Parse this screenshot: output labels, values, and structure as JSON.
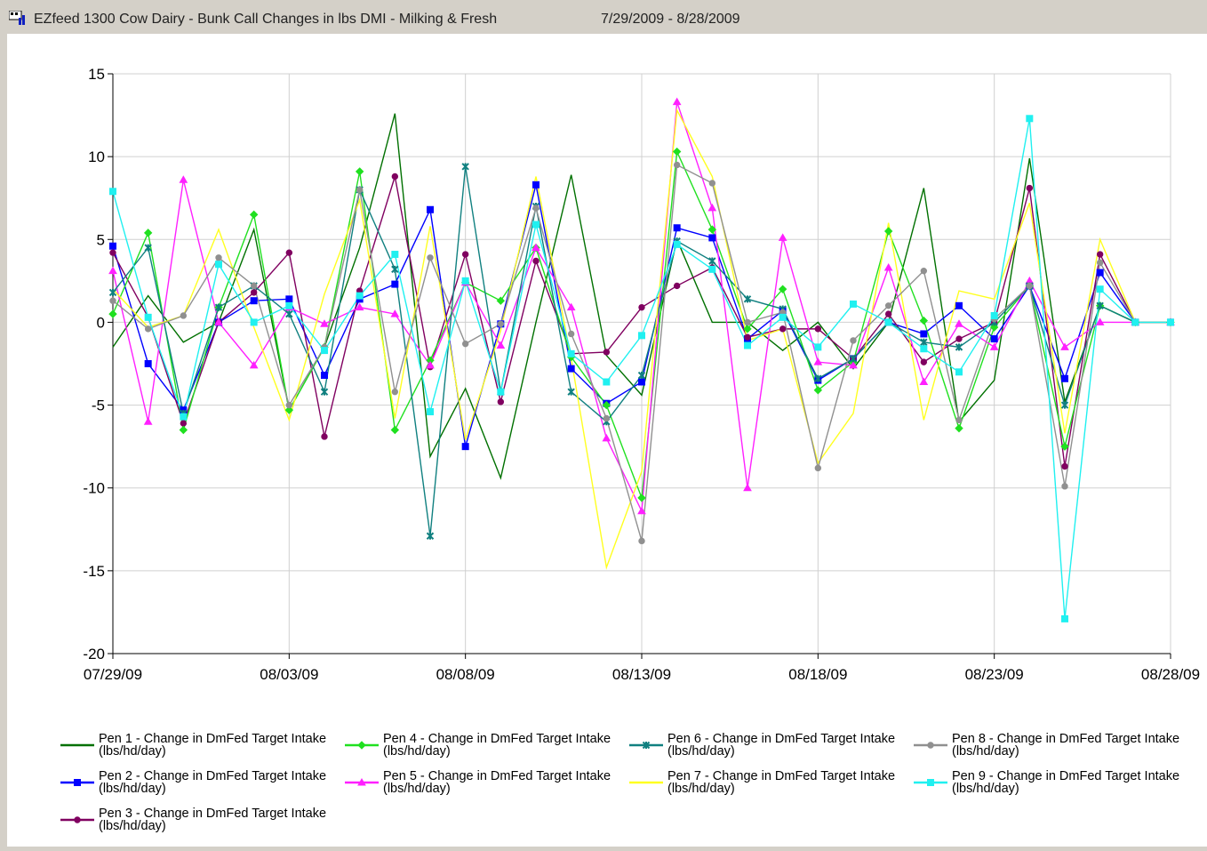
{
  "window": {
    "title": "EZfeed 1300 Cow Dairy - Bunk Call Changes in lbs DMI - Milking & Fresh",
    "date_range": "7/29/2009 - 8/28/2009"
  },
  "chart_data": {
    "type": "line",
    "x": [
      "07/29/09",
      "07/30/09",
      "07/31/09",
      "08/01/09",
      "08/02/09",
      "08/03/09",
      "08/04/09",
      "08/05/09",
      "08/06/09",
      "08/07/09",
      "08/08/09",
      "08/09/09",
      "08/10/09",
      "08/11/09",
      "08/12/09",
      "08/13/09",
      "08/14/09",
      "08/15/09",
      "08/16/09",
      "08/17/09",
      "08/18/09",
      "08/19/09",
      "08/20/09",
      "08/21/09",
      "08/22/09",
      "08/23/09",
      "08/24/09",
      "08/25/09",
      "08/26/09",
      "08/27/09",
      "08/28/09"
    ],
    "xticks": [
      "07/29/09",
      "08/03/09",
      "08/08/09",
      "08/13/09",
      "08/18/09",
      "08/23/09",
      "08/28/09"
    ],
    "ylim": [
      -20,
      15
    ],
    "yticks": [
      -20,
      -15,
      -10,
      -5,
      0,
      5,
      10,
      15
    ],
    "grid": true,
    "series": [
      {
        "name": "Pen 1 - Change in DmFed Target Intake (lbs/hd/day)",
        "color": "#007000",
        "marker": "none",
        "values": [
          -1.5,
          1.6,
          -1.2,
          0,
          5.6,
          -5.3,
          -1.5,
          4.5,
          12.6,
          -8.1,
          -4,
          -9.4,
          0,
          8.9,
          -2,
          -4.4,
          5,
          0,
          0,
          -1.7,
          0,
          -2.8,
          0,
          8.1,
          -6,
          -3.5,
          9.9,
          -4.8,
          1,
          0,
          0
        ]
      },
      {
        "name": "Pen 2 - Change in DmFed Target Intake (lbs/hd/day)",
        "color": "#0000ff",
        "marker": "square",
        "values": [
          4.6,
          -2.5,
          -5.3,
          0,
          1.3,
          1.4,
          -3.2,
          1.4,
          2.3,
          6.8,
          -7.5,
          -0.1,
          8.3,
          -2.8,
          -4.9,
          -3.6,
          5.7,
          5.1,
          -1,
          0.7,
          -3.5,
          -2.2,
          0,
          -0.7,
          1,
          -1,
          2.2,
          -3.4,
          3,
          0,
          0
        ]
      },
      {
        "name": "Pen 3 - Change in DmFed Target Intake (lbs/hd/day)",
        "color": "#800060",
        "marker": "circle",
        "values": [
          4.2,
          0.3,
          -6.1,
          0,
          1.8,
          4.2,
          -6.9,
          1.9,
          8.8,
          -2.7,
          4.1,
          -4.8,
          3.7,
          -1.9,
          -1.8,
          0.9,
          2.2,
          3.3,
          -0.9,
          -0.4,
          -0.4,
          -2.2,
          0.5,
          -2.4,
          -1,
          0,
          8.1,
          -8.7,
          4.1,
          0,
          0
        ]
      },
      {
        "name": "Pen 4 - Change in DmFed Target Intake (lbs/hd/day)",
        "color": "#20e020",
        "marker": "diamond",
        "values": [
          0.5,
          5.4,
          -6.5,
          0.9,
          6.5,
          -5.3,
          -1.5,
          9.1,
          -6.5,
          -2.3,
          2.4,
          1.3,
          4.5,
          -2.1,
          -5,
          -10.6,
          10.3,
          5.6,
          -0.4,
          2,
          -4.1,
          -2.4,
          5.5,
          0.1,
          -6.4,
          -0.3,
          2.2,
          -7.5,
          1,
          0,
          0
        ]
      },
      {
        "name": "Pen 5 - Change in DmFed Target Intake (lbs/hd/day)",
        "color": "#ff20ff",
        "marker": "triangle",
        "values": [
          3.1,
          -6,
          8.6,
          0,
          -2.6,
          0.9,
          -0.1,
          0.9,
          0.5,
          -2.6,
          2.4,
          -1.4,
          4.5,
          0.9,
          -7,
          -11.4,
          13.3,
          6.9,
          -10,
          5.1,
          -2.4,
          -2.6,
          3.3,
          -3.6,
          -0.1,
          -1.5,
          2.5,
          -1.5,
          0,
          0,
          0
        ]
      },
      {
        "name": "Pen 6 - Change in DmFed Target Intake (lbs/hd/day)",
        "color": "#108080",
        "marker": "star",
        "values": [
          1.8,
          4.5,
          -5.5,
          0.9,
          2.2,
          0.5,
          -4.2,
          8,
          3.2,
          -12.9,
          9.4,
          -4.2,
          7,
          -4.2,
          -6,
          -3.2,
          4.9,
          3.7,
          1.4,
          0.8,
          -3.4,
          -2.2,
          0,
          -1.2,
          -1.5,
          0,
          2.2,
          -5,
          1,
          0,
          0
        ]
      },
      {
        "name": "Pen 7 - Change in DmFed Target Intake (lbs/hd/day)",
        "color": "#ffff20",
        "marker": "none",
        "values": [
          2,
          -0.3,
          0.4,
          5.6,
          -0.3,
          -5.9,
          1.7,
          7.4,
          -5.8,
          5.8,
          -7.1,
          -0.5,
          8.8,
          -2.2,
          -14.8,
          -9,
          12.8,
          8.8,
          -1.1,
          -0.4,
          -8.5,
          -5.5,
          6,
          -5.9,
          1.9,
          1.4,
          7.2,
          -6.7,
          5,
          0,
          0
        ]
      },
      {
        "name": "Pen 8 - Change in DmFed Target Intake (lbs/hd/day)",
        "color": "#909090",
        "marker": "circle",
        "values": [
          1.3,
          -0.4,
          0.4,
          3.9,
          2.2,
          -5,
          -1.5,
          8,
          -4.2,
          3.9,
          -1.3,
          -0.1,
          6.9,
          -0.7,
          -5.8,
          -13.2,
          9.5,
          8.4,
          0,
          0.6,
          -8.8,
          -1.1,
          1,
          3.1,
          -5.9,
          0.2,
          2.2,
          -9.9,
          3.6,
          0,
          0
        ]
      },
      {
        "name": "Pen 9 - Change in DmFed Target Intake (lbs/hd/day)",
        "color": "#20f0f0",
        "marker": "square",
        "values": [
          7.9,
          0.3,
          -5.7,
          3.5,
          0,
          1,
          -1.7,
          1.6,
          4.1,
          -5.4,
          2.5,
          -4.2,
          5.9,
          -1.9,
          -3.6,
          -0.8,
          4.7,
          3.2,
          -1.4,
          0.3,
          -1.5,
          1.1,
          0,
          -1.6,
          -3,
          0.4,
          12.3,
          -17.9,
          2,
          0,
          0
        ]
      }
    ]
  }
}
